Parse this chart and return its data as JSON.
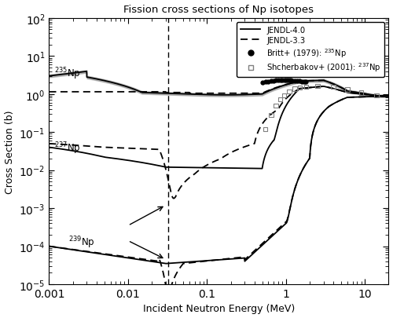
{
  "title": "Fission cross sections of Np isotopes",
  "xlabel": "Incident Neutron Energy (MeV)",
  "ylabel": "Cross Section (b)",
  "xlim": [
    0.001,
    20
  ],
  "ylim": [
    1e-05,
    100.0
  ],
  "legend_labels": {
    "jendl40": "JENDL-4.0",
    "jendl33": "JENDL-3.3",
    "britt": "Britt+ (1979): $^{235}$Np",
    "shcher": "Shcherbakov+ (2001): $^{237}$Np"
  },
  "labels": {
    "np235": "$^{235}$Np",
    "np237": "$^{237}$Np",
    "np239": "$^{239}$Np"
  },
  "label_positions": {
    "np235": [
      0.00115,
      3.5
    ],
    "np237": [
      0.00115,
      0.038
    ],
    "np239": [
      0.00175,
      0.00013
    ]
  },
  "background_color": "#ffffff"
}
